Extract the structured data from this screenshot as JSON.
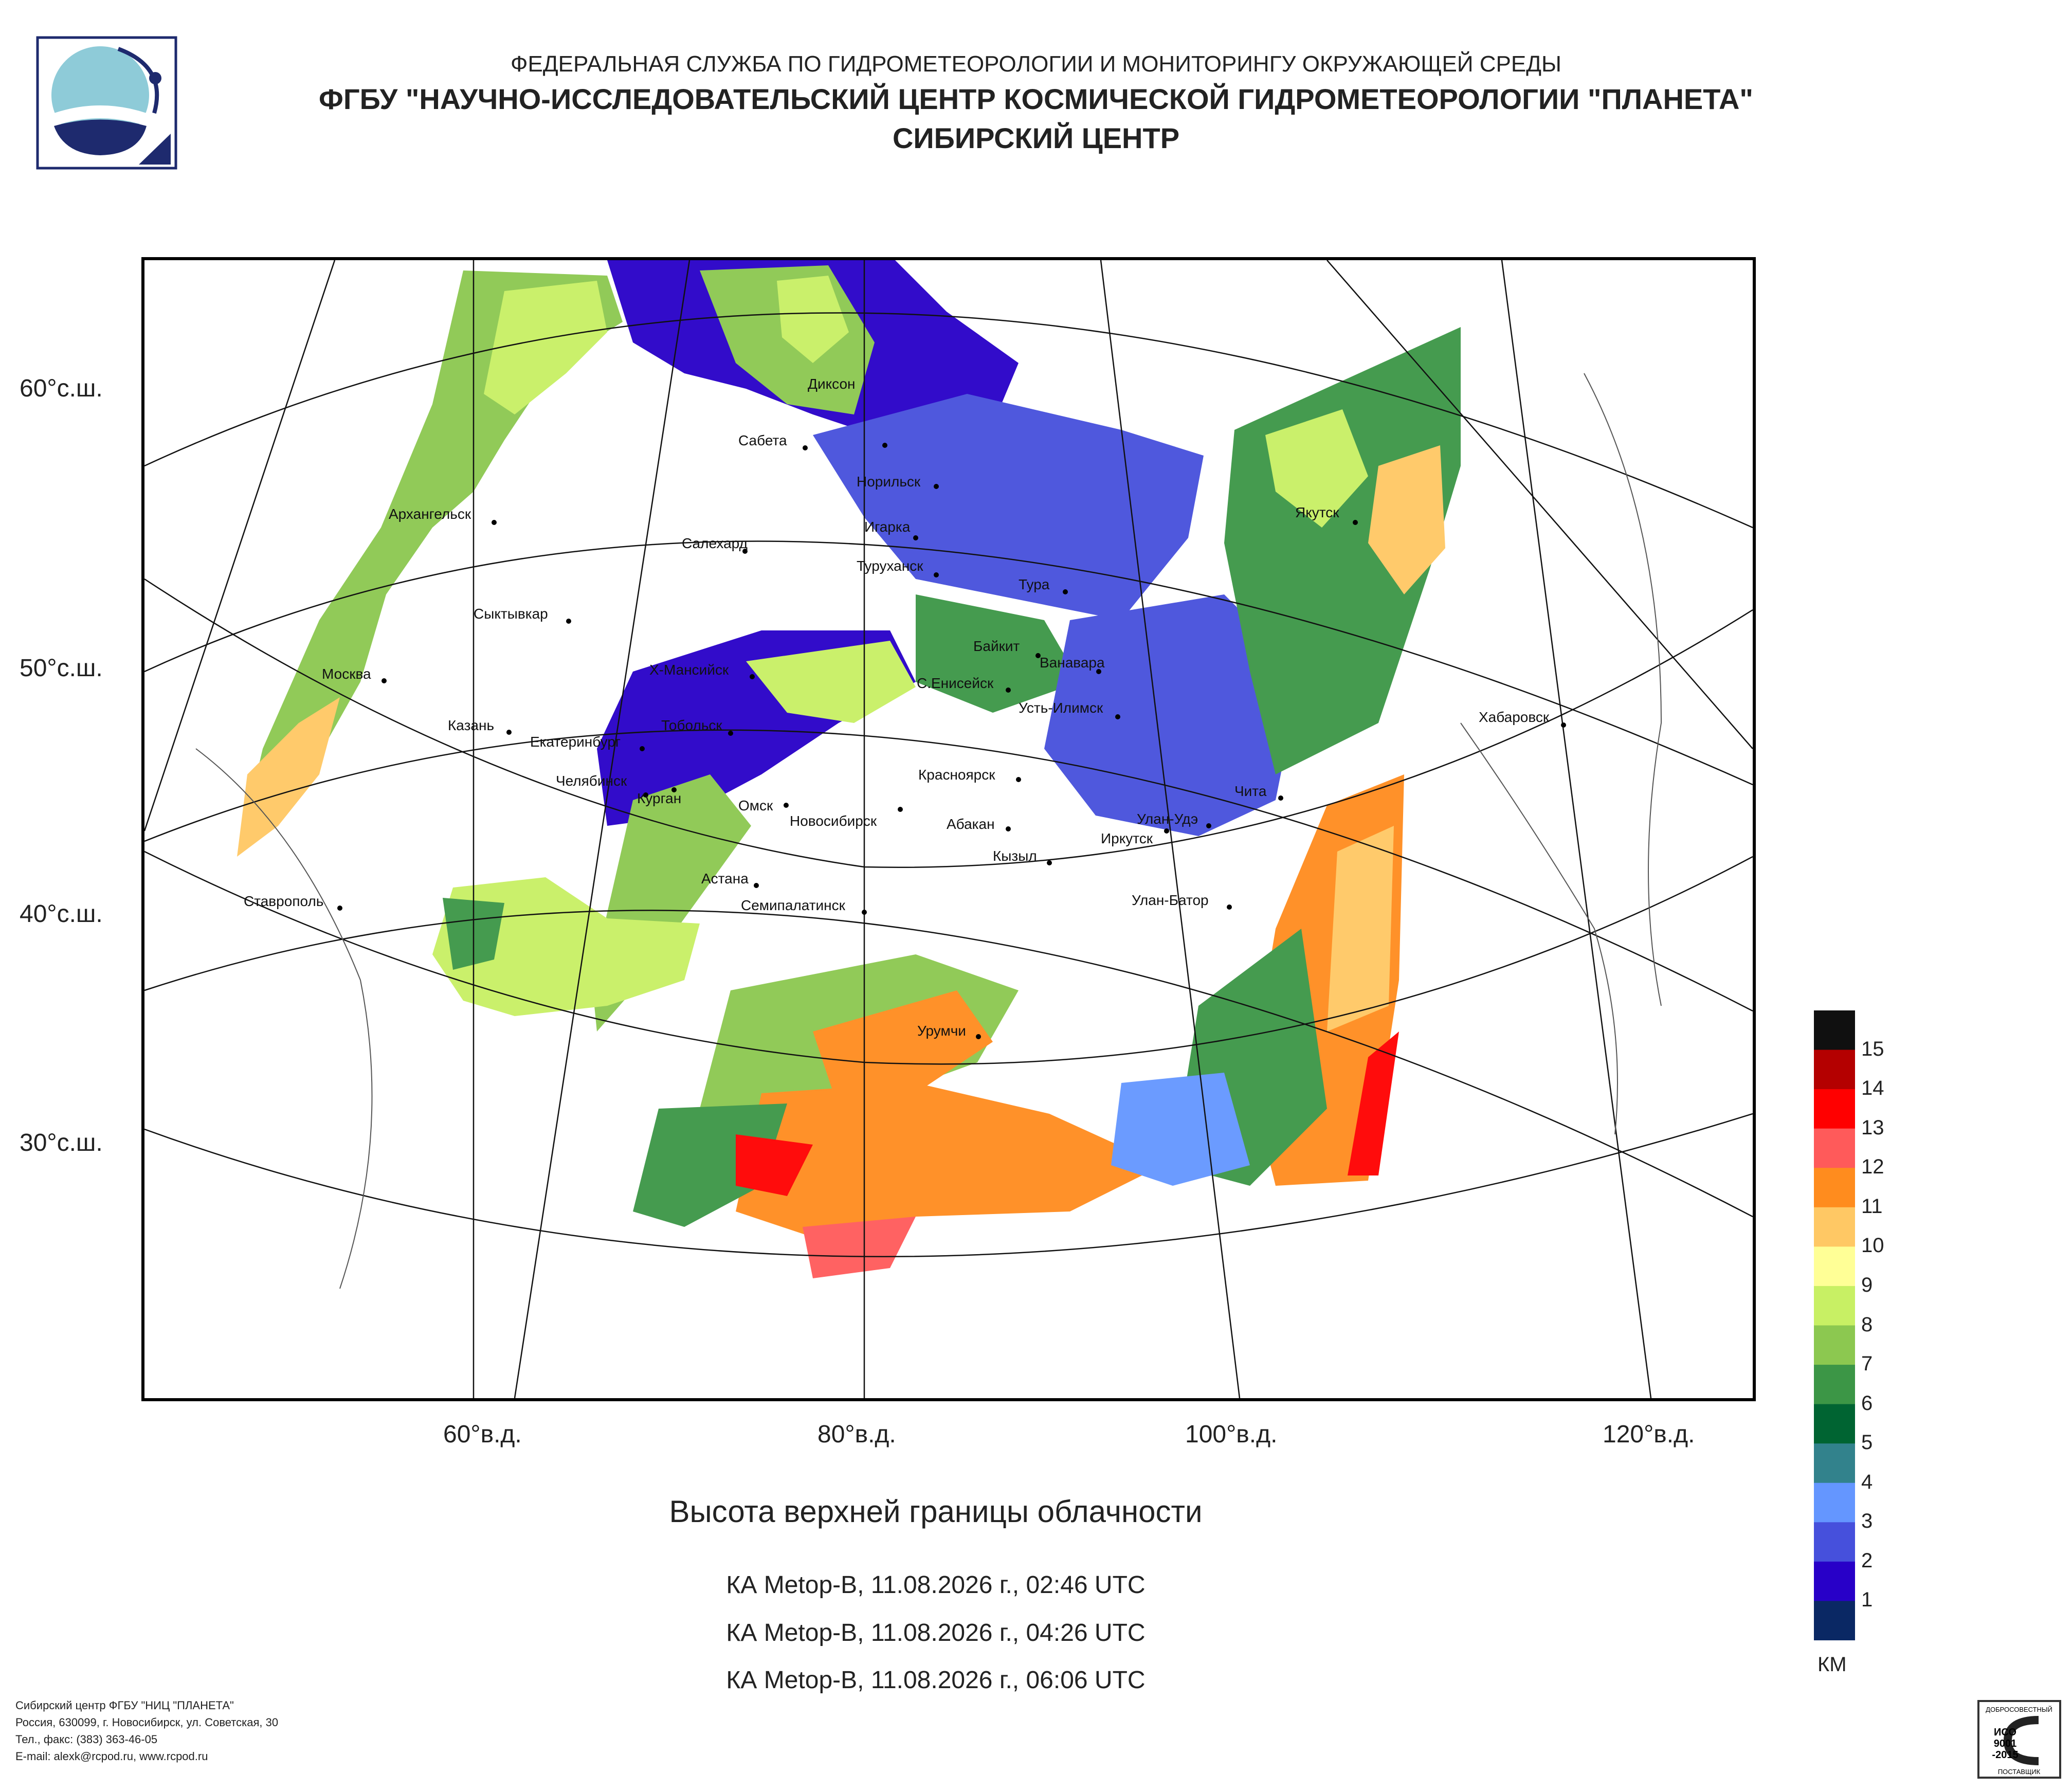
{
  "header": {
    "line1": "ФЕДЕРАЛЬНАЯ СЛУЖБА ПО ГИДРОМЕТЕОРОЛОГИИ И МОНИТОРИНГУ ОКРУЖАЮЩЕЙ СРЕДЫ",
    "line2": "ФГБУ \"НАУЧНО-ИССЛЕДОВАТЕЛЬСКИЙ ЦЕНТР КОСМИЧЕСКОЙ ГИДРОМЕТЕОРОЛОГИИ \"ПЛАНЕТА\"",
    "line3": "СИБИРСКИЙ ЦЕНТР"
  },
  "map": {
    "lat_labels": [
      "60°с.ш.",
      "50°с.ш.",
      "40°с.ш.",
      "30°с.ш."
    ],
    "lon_labels": [
      "60°в.д.",
      "80°в.д.",
      "100°в.д.",
      "120°в.д."
    ],
    "cities": [
      "Диксон",
      "Сабета",
      "Норильск",
      "Игарка",
      "Туруханск",
      "Салехард",
      "Архангельск",
      "Сыктывкар",
      "Тура",
      "Якутск",
      "Байкит",
      "Ванавара",
      "С.Енисейск",
      "Усть-Илимск",
      "Х-Мансийск",
      "Москва",
      "Казань",
      "Екатеринбург",
      "Тобольск",
      "Челябинск",
      "Курган",
      "Омск",
      "Новосибирск",
      "Красноярск",
      "Абакан",
      "Кызыл",
      "Иркутск",
      "Улан-Удэ",
      "Чита",
      "Хабаровск",
      "Улан-Батор",
      "Астана",
      "Семипалатинск",
      "Ставрополь",
      "Урумчи"
    ]
  },
  "title": "Высота верхней границы облачности",
  "passes": [
    "КА Metop-B, 11.08.2026 г., 02:46 UTC",
    "КА Metop-B, 11.08.2026 г., 04:26 UTC",
    "КА Metop-B, 11.08.2026 г., 06:06 UTC"
  ],
  "legend": {
    "unit": "КМ",
    "labels": [
      "15",
      "14",
      "13",
      "12",
      "11",
      "10",
      "9",
      "8",
      "7",
      "6",
      "5",
      "4",
      "3",
      "2",
      "1"
    ],
    "colors": [
      "#101010",
      "#b40000",
      "#ff0000",
      "#ff5a5a",
      "#ff8c1e",
      "#ffc864",
      "#ffff96",
      "#c8f064",
      "#8cc850",
      "#3c9646",
      "#006432",
      "#32828c",
      "#6496ff",
      "#4650dc",
      "#2800c8",
      "#0a2864"
    ]
  },
  "footer": [
    "Сибирский центр ФГБУ \"НИЦ \"ПЛАНЕТА\"",
    "Россия, 630099, г. Новосибирск, ул. Советская, 30",
    "Тел., факс: (383) 363-46-05",
    "E-mail: alexk@rcpod.ru, www.rcpod.ru"
  ],
  "iso": {
    "top": "ДОБРОСОВЕСТНЫЙ",
    "l1": "ИСО",
    "l2": "9001",
    "l3": "-2015",
    "bottom": "ПОСТАВЩИК"
  }
}
